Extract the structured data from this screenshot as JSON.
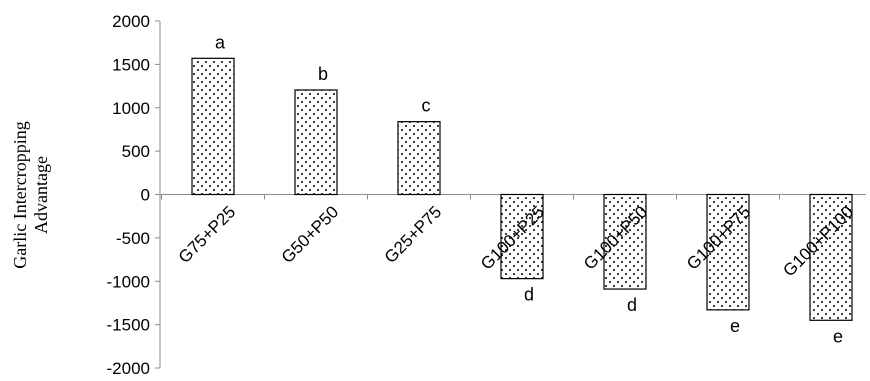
{
  "chart_data": {
    "type": "bar",
    "title": "",
    "xlabel": "",
    "ylabel": [
      "Garlic Intercropping",
      "Advantage"
    ],
    "ylim": [
      -2000,
      2000
    ],
    "yticks": [
      2000,
      1500,
      1000,
      500,
      0,
      -500,
      -1000,
      -1500,
      -2000
    ],
    "grid": false,
    "legend": "none",
    "bar_fill": "#ffffff",
    "bar_stroke": "#000000",
    "bar_pattern": "dots",
    "categories": [
      "G75+P25",
      "G50+P50",
      "G25+P75",
      "G100+P25",
      "G100+P50",
      "G100+P75",
      "G100+P100"
    ],
    "values": [
      1570,
      1205,
      840,
      -970,
      -1090,
      -1330,
      -1450
    ],
    "letters": [
      "a",
      "b",
      "c",
      "d",
      "d",
      "e",
      "e"
    ]
  }
}
